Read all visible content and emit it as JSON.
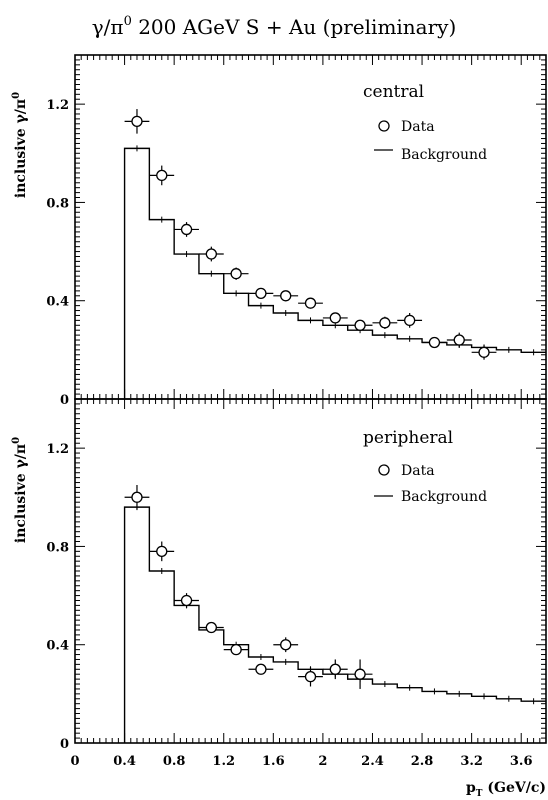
{
  "page": {
    "title_prefix": "γ/π",
    "title_sup": "0",
    "title_suffix": " 200 AGeV S + Au (preliminary)"
  },
  "chart_data": [
    {
      "type": "scatter",
      "panel_label": "central",
      "ylabel_main": "inclusive γ/π",
      "ylabel_sup": "0",
      "ylim": [
        0,
        1.4
      ],
      "xlim": [
        0,
        3.8
      ],
      "yticks": [
        0,
        0.4,
        0.8,
        1.2
      ],
      "ytick_labels": [
        "0",
        "0.4",
        "0.8",
        "1.2"
      ],
      "legend": {
        "position": "top-right",
        "data_label": "Data",
        "background_label": "Background"
      },
      "series": [
        {
          "name": "Data",
          "kind": "points",
          "x": [
            0.5,
            0.7,
            0.9,
            1.1,
            1.3,
            1.5,
            1.7,
            1.9,
            2.1,
            2.3,
            2.5,
            2.7,
            2.9,
            3.1,
            3.3
          ],
          "y": [
            1.13,
            0.91,
            0.69,
            0.59,
            0.51,
            0.43,
            0.42,
            0.39,
            0.33,
            0.3,
            0.31,
            0.32,
            0.23,
            0.24,
            0.19
          ],
          "yerr": [
            0.05,
            0.04,
            0.03,
            0.03,
            0.025,
            0.02,
            0.02,
            0.02,
            0.02,
            0.02,
            0.025,
            0.03,
            0.02,
            0.03,
            0.03
          ],
          "xerr": [
            0.1,
            0.1,
            0.1,
            0.1,
            0.1,
            0.1,
            0.1,
            0.1,
            0.1,
            0.1,
            0.1,
            0.1,
            0.1,
            0.1,
            0.1
          ]
        },
        {
          "name": "Background",
          "kind": "step",
          "edges": [
            0.4,
            0.6,
            0.8,
            1.0,
            1.2,
            1.4,
            1.6,
            1.8,
            2.0,
            2.2,
            2.4,
            2.6,
            2.8,
            3.0,
            3.2,
            3.4,
            3.6,
            3.8
          ],
          "values": [
            1.02,
            0.73,
            0.59,
            0.51,
            0.43,
            0.38,
            0.35,
            0.32,
            0.3,
            0.28,
            0.26,
            0.245,
            0.23,
            0.22,
            0.21,
            0.2,
            0.19
          ]
        }
      ]
    },
    {
      "type": "scatter",
      "panel_label": "peripheral",
      "ylabel_main": "inclusive γ/π",
      "ylabel_sup": "0",
      "xlabel_main": "p",
      "xlabel_sub": "T",
      "xlabel_unit": " (GeV/c)",
      "ylim": [
        0,
        1.4
      ],
      "xlim": [
        0,
        3.8
      ],
      "xticks": [
        0,
        0.4,
        0.8,
        1.2,
        1.6,
        2.0,
        2.4,
        2.8,
        3.2,
        3.6
      ],
      "xtick_labels": [
        "0",
        "0.4",
        "0.8",
        "1.2",
        "1.6",
        "2",
        "2.4",
        "2.8",
        "3.2",
        "3.6"
      ],
      "yticks": [
        0,
        0.4,
        0.8,
        1.2
      ],
      "ytick_labels": [
        "0",
        "0.4",
        "0.8",
        "1.2"
      ],
      "legend": {
        "position": "top-right",
        "data_label": "Data",
        "background_label": "Background"
      },
      "series": [
        {
          "name": "Data",
          "kind": "points",
          "x": [
            0.5,
            0.7,
            0.9,
            1.1,
            1.3,
            1.5,
            1.7,
            1.9,
            2.1,
            2.3
          ],
          "y": [
            1.0,
            0.78,
            0.58,
            0.47,
            0.38,
            0.3,
            0.4,
            0.27,
            0.3,
            0.28
          ],
          "yerr": [
            0.05,
            0.04,
            0.03,
            0.02,
            0.02,
            0.02,
            0.03,
            0.04,
            0.04,
            0.06
          ],
          "xerr": [
            0.1,
            0.1,
            0.1,
            0.1,
            0.1,
            0.1,
            0.1,
            0.1,
            0.1,
            0.1
          ]
        },
        {
          "name": "Background",
          "kind": "step",
          "edges": [
            0.4,
            0.6,
            0.8,
            1.0,
            1.2,
            1.4,
            1.6,
            1.8,
            2.0,
            2.2,
            2.4,
            2.6,
            2.8,
            3.0,
            3.2,
            3.4,
            3.6,
            3.8
          ],
          "values": [
            0.96,
            0.7,
            0.56,
            0.46,
            0.4,
            0.35,
            0.33,
            0.3,
            0.28,
            0.26,
            0.24,
            0.225,
            0.21,
            0.2,
            0.19,
            0.18,
            0.17
          ]
        }
      ]
    }
  ]
}
